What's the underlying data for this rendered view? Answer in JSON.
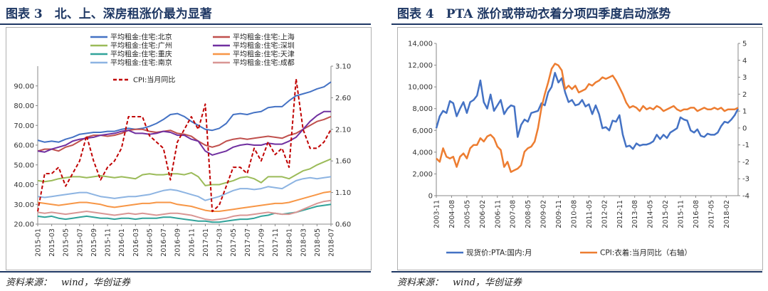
{
  "figures": [
    {
      "title": "图表 3　北、上、深房租涨价最为显著",
      "source": "资料来源：　wind，华创证券"
    },
    {
      "title": "图表 4　PTA 涨价或带动衣着分项四季度启动涨势",
      "source": "资料来源：　wind，华创证券"
    }
  ],
  "chart_data": [
    {
      "type": "line",
      "title": "",
      "x": [
        "2015-01",
        "2015-02",
        "2015-03",
        "2015-04",
        "2015-05",
        "2015-06",
        "2015-07",
        "2015-08",
        "2015-09",
        "2015-10",
        "2015-11",
        "2015-12",
        "2016-01",
        "2016-02",
        "2016-03",
        "2016-04",
        "2016-05",
        "2016-06",
        "2016-07",
        "2016-08",
        "2016-09",
        "2016-10",
        "2016-11",
        "2016-12",
        "2017-01",
        "2017-02",
        "2017-03",
        "2017-04",
        "2017-05",
        "2017-06",
        "2017-07",
        "2017-08",
        "2017-09",
        "2017-10",
        "2017-11",
        "2017-12",
        "2018-01",
        "2018-02",
        "2018-03",
        "2018-04",
        "2018-05",
        "2018-06",
        "2018-07"
      ],
      "x_tick_labels": [
        "2015-01",
        "2015-03",
        "2015-05",
        "2015-07",
        "2015-09",
        "2015-11",
        "2016-01",
        "2016-03",
        "2016-05",
        "2016-07",
        "2016-09",
        "2016-11",
        "2017-01",
        "2017-03",
        "2017-05",
        "2017-07",
        "2017-09",
        "2017-11",
        "2018-01",
        "2018-03",
        "2018-05",
        "2018-07"
      ],
      "ylim": [
        20,
        100
      ],
      "y_ticks": [
        "20.00",
        "30.00",
        "40.00",
        "50.00",
        "60.00",
        "70.00",
        "80.00",
        "90.00"
      ],
      "y2lim": [
        0.6,
        3.1
      ],
      "y2_ticks": [
        "0.60",
        "1.10",
        "1.60",
        "2.10",
        "2.60",
        "3.10"
      ],
      "grid": false,
      "legend_position": "top",
      "series": [
        {
          "name": "平均租金:住宅:北京",
          "color": "#4472c4",
          "axis": "left",
          "dash": false,
          "values": [
            62.5,
            61.5,
            62,
            61.5,
            63,
            64,
            65.5,
            66,
            66.5,
            66.5,
            67,
            67,
            68,
            68.5,
            68,
            68.5,
            69.5,
            71,
            73,
            75.5,
            76,
            74.5,
            72,
            70,
            68,
            67.5,
            68.5,
            71,
            75.5,
            76,
            75.5,
            76.5,
            77,
            79,
            79.5,
            79.5,
            82.5,
            85,
            86,
            87,
            88.5,
            89.5,
            92
          ]
        },
        {
          "name": "平均租金:住宅:上海",
          "color": "#c0504d",
          "axis": "left",
          "dash": false,
          "values": [
            57,
            58,
            58,
            57,
            59,
            60,
            62,
            64,
            65,
            65,
            64.5,
            65,
            66,
            67.5,
            68,
            68,
            67,
            66.5,
            67,
            67.5,
            66,
            65.5,
            64.5,
            62,
            60,
            59,
            60,
            62,
            63,
            63.5,
            63,
            63.5,
            64,
            64.5,
            64,
            63.5,
            65,
            66,
            68,
            70,
            72,
            73,
            74.5
          ]
        },
        {
          "name": "平均租金:住宅:广州",
          "color": "#9bbb59",
          "axis": "left",
          "dash": false,
          "values": [
            42,
            41.5,
            42,
            43,
            43.5,
            44,
            44,
            43.5,
            44,
            44.5,
            44,
            43.5,
            44,
            43.5,
            43,
            45,
            45.5,
            45,
            45,
            45.5,
            45.5,
            45,
            46,
            44,
            39.5,
            40,
            40,
            41,
            42,
            43.5,
            44,
            43,
            41,
            44,
            44,
            44,
            43,
            45,
            47,
            48,
            50,
            51.5,
            53
          ]
        },
        {
          "name": "平均租金:住宅:深圳",
          "color": "#7030a0",
          "axis": "left",
          "dash": false,
          "values": [
            57,
            56.5,
            58,
            59,
            60,
            62,
            63,
            63.5,
            64,
            65,
            65.5,
            66,
            67,
            67.5,
            66,
            66,
            65.5,
            66,
            67,
            66.5,
            65,
            65,
            63,
            62,
            57,
            55,
            56,
            57,
            59,
            60,
            60.5,
            60,
            60,
            61,
            60.5,
            60.5,
            62,
            64,
            68,
            72,
            75,
            77,
            77
          ]
        },
        {
          "name": "平均租金:住宅:重庆",
          "color": "#31a39a",
          "axis": "left",
          "dash": false,
          "values": [
            24,
            23.5,
            24,
            23,
            22.5,
            23,
            23.5,
            24,
            23.5,
            23,
            23,
            22.5,
            23,
            23,
            22.5,
            23,
            23,
            23,
            23.5,
            23.5,
            23,
            22.5,
            22,
            21.5,
            21.5,
            21,
            21,
            21.5,
            22,
            22.5,
            22.5,
            23,
            24,
            24.5,
            25.5,
            25,
            25.5,
            26,
            27,
            28,
            29,
            29.5,
            30
          ]
        },
        {
          "name": "平均租金:住宅:天津",
          "color": "#f79646",
          "axis": "left",
          "dash": false,
          "values": [
            31,
            30.5,
            30,
            29.5,
            30,
            30.5,
            31,
            31,
            30.5,
            30,
            29,
            28.5,
            29,
            29.5,
            30,
            30.5,
            30.5,
            31,
            31,
            31,
            30,
            29.5,
            29,
            28,
            27,
            26.5,
            26.5,
            27,
            27.5,
            28,
            28.5,
            29,
            29.5,
            30,
            30.5,
            30.5,
            31,
            32,
            33,
            34,
            35,
            36,
            36.5
          ]
        },
        {
          "name": "平均租金:住宅:南京",
          "color": "#8db4e2",
          "axis": "left",
          "dash": false,
          "values": [
            34,
            33.5,
            34,
            34.5,
            35,
            35.5,
            36,
            36,
            35,
            34,
            33.5,
            33,
            33.5,
            34,
            34,
            34.5,
            35,
            36,
            37,
            37.5,
            37,
            36,
            35,
            34,
            32,
            33,
            34,
            35.5,
            37,
            38,
            38,
            37.5,
            38,
            39,
            38.5,
            38,
            40,
            42,
            43,
            43.5,
            43,
            43.5,
            44
          ]
        },
        {
          "name": "平均租金:住宅:成都",
          "color": "#d99694",
          "axis": "left",
          "dash": false,
          "values": [
            26,
            25.5,
            26,
            25.5,
            25,
            25.5,
            26,
            26.5,
            26,
            25.5,
            25,
            24.5,
            25,
            25.5,
            25,
            25.5,
            25,
            24.5,
            25,
            25.5,
            25.5,
            25,
            24.5,
            23.5,
            22.5,
            22,
            22.5,
            23,
            24,
            24.5,
            24.5,
            25,
            25.5,
            26,
            25.5,
            25,
            25,
            26,
            27.5,
            29,
            30.5,
            31.5,
            32
          ]
        },
        {
          "name": "CPI:当月同比",
          "color": "#c00000",
          "axis": "right",
          "dash": true,
          "values": [
            0.8,
            1.4,
            1.4,
            1.5,
            1.2,
            1.4,
            1.6,
            2.0,
            1.6,
            1.3,
            1.5,
            1.6,
            1.8,
            2.3,
            2.3,
            2.3,
            2.0,
            1.9,
            1.8,
            1.3,
            1.9,
            2.1,
            2.3,
            2.1,
            2.5,
            0.8,
            0.9,
            1.2,
            1.5,
            1.5,
            1.4,
            1.8,
            1.6,
            1.9,
            1.7,
            1.8,
            1.5,
            2.9,
            2.1,
            1.8,
            1.8,
            1.9,
            2.1
          ]
        }
      ]
    },
    {
      "type": "line",
      "title": "",
      "x_tick_labels": [
        "2003-11",
        "2004-08",
        "2005-05",
        "2006-02",
        "2006-11",
        "2007-08",
        "2008-05",
        "2009-02",
        "2009-11",
        "2010-08",
        "2011-05",
        "2012-02",
        "2012-11",
        "2013-08",
        "2014-05",
        "2015-02",
        "2015-11",
        "2016-08",
        "2017-05",
        "2018-02"
      ],
      "ylim": [
        0,
        14000
      ],
      "y_ticks": [
        "0",
        "2,000",
        "4,000",
        "6,000",
        "8,000",
        "10,000",
        "12,000",
        "14,000"
      ],
      "y2lim": [
        -4,
        5
      ],
      "y2_ticks": [
        "-4",
        "-3",
        "-2",
        "-1",
        "0",
        "1",
        "2",
        "3",
        "4",
        "5"
      ],
      "grid": false,
      "legend_position": "bottom",
      "series": [
        {
          "name": "现货价:PTA:国内:月",
          "color": "#4472c4",
          "axis": "left",
          "x_index": [
            0,
            2,
            4,
            6,
            8,
            10,
            12,
            14,
            16,
            18,
            20,
            22,
            24,
            26,
            28,
            30,
            32,
            34,
            36,
            38,
            40,
            42,
            44,
            46,
            48,
            50,
            52,
            54,
            56,
            58,
            60,
            62,
            64,
            66,
            68,
            70,
            72,
            74,
            76,
            78,
            80,
            82,
            84,
            86,
            88,
            90,
            92,
            94,
            96,
            98,
            100,
            102,
            104,
            106,
            108,
            110,
            112,
            114,
            116,
            118,
            120,
            122,
            124,
            126,
            128,
            130,
            132,
            134,
            136,
            138,
            140,
            142,
            144,
            146,
            148,
            150,
            152,
            154,
            156,
            158,
            160,
            162,
            164,
            166,
            168,
            170,
            172,
            174,
            176,
            178
          ],
          "values": [
            6200,
            7300,
            7800,
            7600,
            8700,
            8500,
            7300,
            8000,
            8600,
            7600,
            8600,
            8800,
            9200,
            10600,
            8600,
            8000,
            9300,
            7800,
            8300,
            8800,
            7500,
            8000,
            8300,
            8200,
            5400,
            6500,
            7000,
            6800,
            7600,
            7700,
            7800,
            8500,
            8300,
            9500,
            10000,
            11300,
            10400,
            10800,
            9500,
            8600,
            8800,
            8300,
            8400,
            8800,
            8200,
            8400,
            7500,
            8300,
            7500,
            6200,
            6300,
            6000,
            6900,
            6800,
            7400,
            5600,
            4500,
            4600,
            4300,
            4800,
            4600,
            4700,
            4700,
            4800,
            5000,
            5600,
            5200,
            5600,
            5300,
            5800,
            6000,
            6200,
            7200,
            7000,
            6900,
            6000,
            5800,
            6100,
            5500,
            5400,
            5700,
            5600,
            5600,
            5800,
            6400,
            6800,
            6700,
            7000,
            7400,
            8000
          ]
        },
        {
          "name": "CPI:衣着:当月同比（右轴）",
          "color": "#ed7d31",
          "axis": "right",
          "x_index": [
            0,
            2,
            4,
            6,
            8,
            10,
            12,
            14,
            16,
            18,
            20,
            22,
            24,
            26,
            28,
            30,
            32,
            34,
            36,
            38,
            40,
            42,
            44,
            46,
            48,
            50,
            52,
            54,
            56,
            58,
            60,
            62,
            64,
            66,
            68,
            70,
            72,
            74,
            76,
            78,
            80,
            82,
            84,
            86,
            88,
            90,
            92,
            94,
            96,
            98,
            100,
            102,
            104,
            106,
            108,
            110,
            112,
            114,
            116,
            118,
            120,
            122,
            124,
            126,
            128,
            130,
            132,
            134,
            136,
            138,
            140,
            142,
            144,
            146,
            148,
            150,
            152,
            154,
            156,
            158,
            160,
            162,
            164,
            166,
            168,
            170,
            172,
            174,
            176,
            178
          ],
          "values": [
            -1.8,
            -2.0,
            -1.2,
            -1.7,
            -1.8,
            -1.7,
            -2.3,
            -1.7,
            -1.5,
            -1.8,
            -1.2,
            -1.0,
            -1.0,
            -0.6,
            -0.8,
            -0.5,
            -0.4,
            -0.6,
            -1.1,
            -1.3,
            -2.3,
            -2.0,
            -2.6,
            -2.5,
            -2.4,
            -2.2,
            -1.4,
            -1.2,
            -1.1,
            -0.8,
            0.0,
            1.2,
            2.0,
            2.7,
            3.5,
            3.8,
            3.7,
            3.4,
            2.3,
            2.5,
            2.3,
            2.5,
            2.1,
            2.2,
            2.3,
            2.6,
            2.5,
            2.7,
            2.8,
            3.0,
            2.9,
            3.0,
            3.1,
            2.8,
            2.4,
            2.0,
            1.5,
            1.2,
            1.3,
            1.2,
            1.0,
            1.3,
            1.1,
            1.2,
            1.1,
            1.3,
            1.2,
            1.0,
            1.1,
            1.2,
            1.3,
            1.1,
            1.0,
            1.1,
            1.1,
            1.2,
            1.2,
            1.0,
            1.1,
            1.2,
            1.1,
            1.1,
            1.2,
            1.1,
            1.2,
            1.0,
            1.1,
            1.1,
            1.1,
            1.2
          ]
        }
      ]
    }
  ]
}
